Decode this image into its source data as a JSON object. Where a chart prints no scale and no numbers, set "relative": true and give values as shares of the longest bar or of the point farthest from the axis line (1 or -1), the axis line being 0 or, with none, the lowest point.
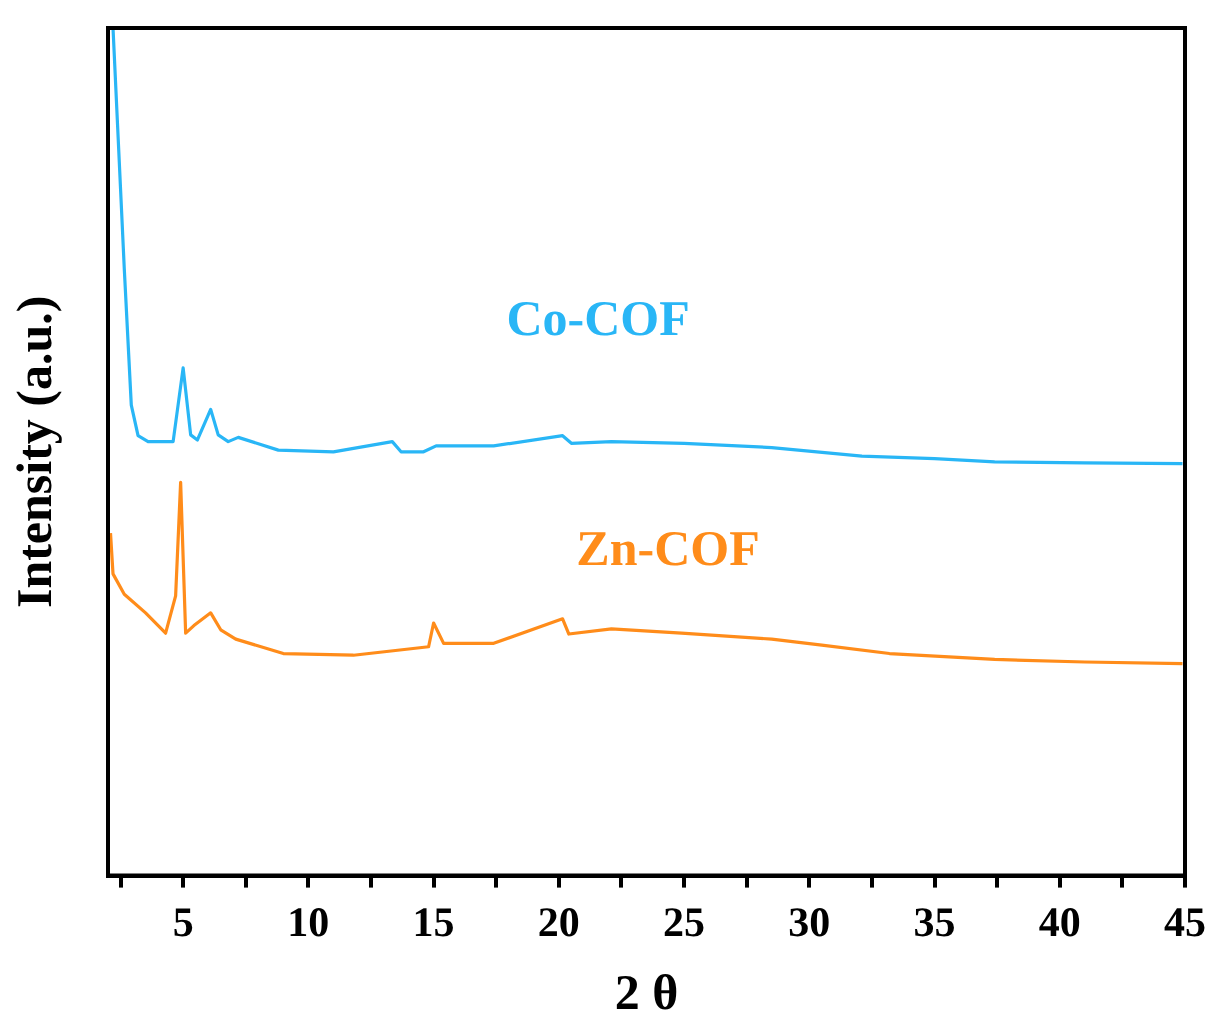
{
  "chart_data": {
    "type": "line",
    "xlabel": "2 θ",
    "ylabel": "Intensity (a.u.)",
    "relative": true,
    "xlim": [
      2,
      45
    ],
    "xticks": [
      {
        "value": 2.5,
        "label": null
      },
      5,
      {
        "value": 7.5,
        "label": null
      },
      10,
      {
        "value": 12.5,
        "label": null
      },
      15,
      {
        "value": 17.5,
        "label": null
      },
      20,
      {
        "value": 22.5,
        "label": null
      },
      25,
      {
        "value": 27.5,
        "label": null
      },
      30,
      {
        "value": 32.5,
        "label": null
      },
      35,
      {
        "value": 37.5,
        "label": null
      },
      40,
      {
        "value": 42.5,
        "label": null
      },
      45
    ],
    "grid": false,
    "legend": false,
    "marker": "none",
    "line_style": "solid",
    "series": [
      {
        "name": "Co-COF",
        "color": "#29b6f6",
        "x": [
          2.2,
          2.65,
          2.93,
          3.2,
          3.6,
          4.6,
          5.0,
          5.3,
          5.57,
          6.1,
          6.4,
          6.8,
          7.2,
          8.8,
          11,
          13.35,
          13.7,
          14.6,
          15.1,
          17.4,
          20.15,
          20.5,
          22.1,
          25,
          28.5,
          32.1,
          35,
          37.4,
          41,
          44.9
        ],
        "values": [
          1.0,
          0.716,
          0.555,
          0.519,
          0.512,
          0.512,
          0.599,
          0.52,
          0.514,
          0.55,
          0.52,
          0.512,
          0.517,
          0.502,
          0.5,
          0.512,
          0.5,
          0.5,
          0.507,
          0.507,
          0.519,
          0.51,
          0.512,
          0.51,
          0.505,
          0.495,
          0.492,
          0.488,
          0.487,
          0.486
        ]
      },
      {
        "name": "Zn-COF",
        "color": "#ff8c1a",
        "x": [
          2.1,
          2.2,
          2.65,
          3.5,
          4.3,
          4.7,
          4.9,
          5.1,
          5.43,
          6.1,
          6.5,
          7.1,
          9.0,
          11.8,
          14.8,
          15.0,
          15.4,
          17.4,
          20.15,
          20.4,
          22.1,
          24.9,
          28.5,
          30.5,
          33.2,
          37.4,
          41,
          44.9
        ],
        "values": [
          0.404,
          0.356,
          0.332,
          0.31,
          0.286,
          0.33,
          0.464,
          0.286,
          0.295,
          0.31,
          0.29,
          0.279,
          0.262,
          0.26,
          0.27,
          0.298,
          0.274,
          0.274,
          0.303,
          0.285,
          0.291,
          0.286,
          0.279,
          0.272,
          0.262,
          0.255,
          0.252,
          0.25
        ]
      }
    ]
  }
}
